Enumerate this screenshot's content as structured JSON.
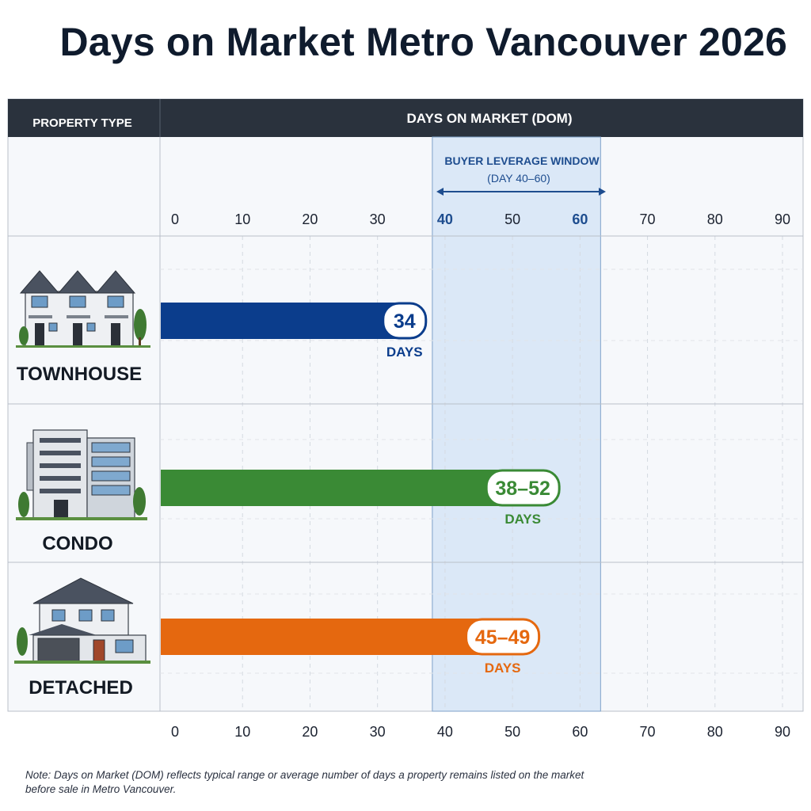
{
  "title": "Days on Market Metro Vancouver 2026",
  "header": {
    "property_type": "PROPERTY TYPE",
    "days_on_market": "DAYS ON MARKET (DOM)"
  },
  "leverage_window": {
    "label_line1": "BUYER LEVERAGE WINDOW",
    "label_line2": "(DAY 40–60)",
    "start": 40,
    "end": 60,
    "color": "#dbe8f7"
  },
  "note": "Note: Days on Market (DOM) reflects typical range or average number of days a property remains listed on the market before sale in Metro Vancouver.",
  "chart_data": {
    "type": "bar",
    "orientation": "horizontal",
    "x_ticks": [
      "0",
      "10",
      "20",
      "30",
      "40",
      "50",
      "60",
      "70",
      "80",
      "90"
    ],
    "xlim": [
      0,
      90
    ],
    "grid": true,
    "categories": [
      "TOWNHOUSE",
      "CONDO",
      "DETACHED"
    ],
    "bars": [
      {
        "category": "TOWNHOUSE",
        "value": 34,
        "low": 34,
        "high": 34,
        "label": "34",
        "unit": "DAYS",
        "color": "#0b3d8c",
        "icon": "townhouse-icon"
      },
      {
        "category": "CONDO",
        "value": 52,
        "low": 38,
        "high": 52,
        "label": "38–52",
        "unit": "DAYS",
        "color": "#3a8a35",
        "icon": "condo-building-icon"
      },
      {
        "category": "DETACHED",
        "value": 49,
        "low": 45,
        "high": 49,
        "label": "45–49",
        "unit": "DAYS",
        "color": "#e5680f",
        "icon": "detached-house-icon"
      }
    ]
  }
}
